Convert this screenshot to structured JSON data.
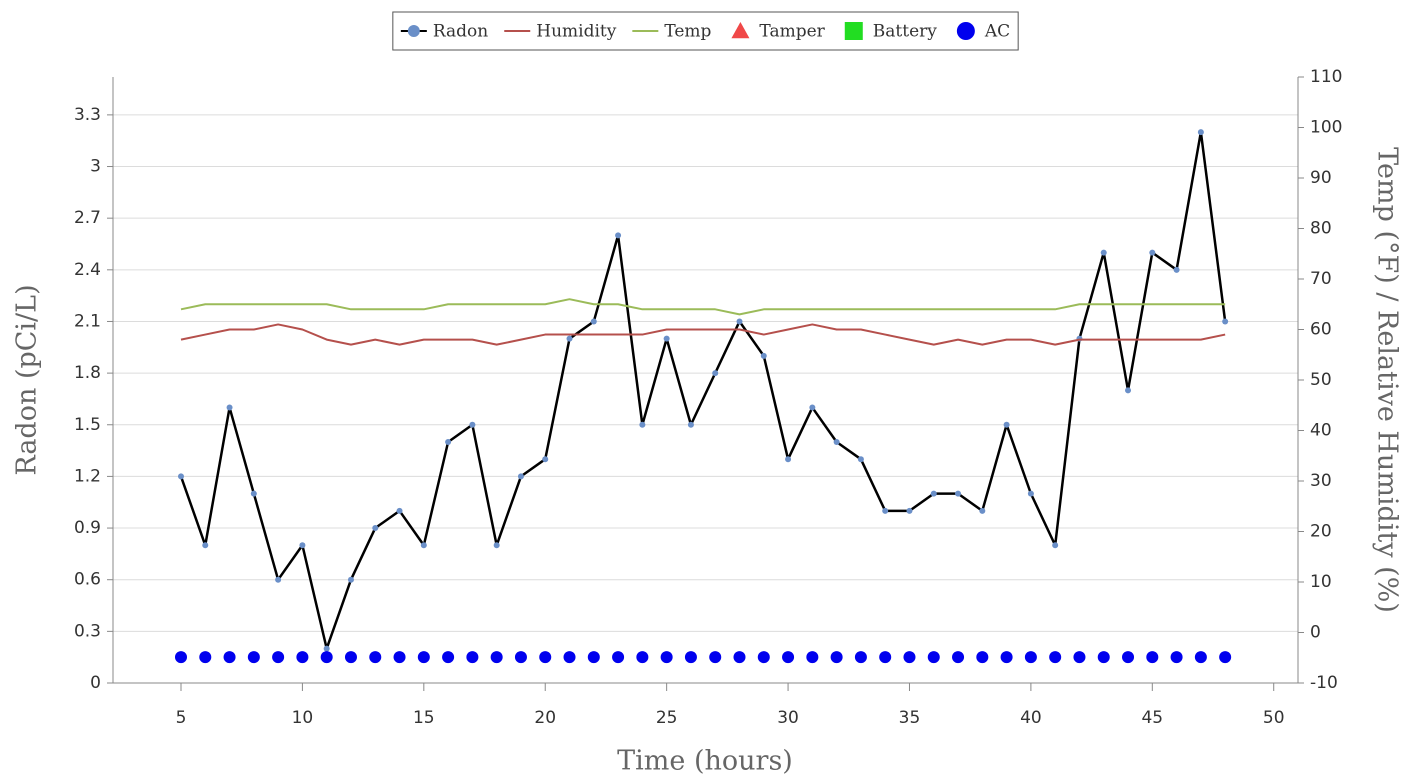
{
  "chart_data": {
    "type": "line",
    "x_label": "Time (hours)",
    "y_label": "Radon (pCi/L)",
    "y2_label": "Temp (°F) / Relative Humidity (%)",
    "x": [
      5,
      6,
      7,
      8,
      9,
      10,
      11,
      12,
      13,
      14,
      15,
      16,
      17,
      18,
      19,
      20,
      21,
      22,
      23,
      24,
      25,
      26,
      27,
      28,
      29,
      30,
      31,
      32,
      33,
      34,
      35,
      36,
      37,
      38,
      39,
      40,
      41,
      42,
      43,
      44,
      45,
      46,
      47,
      48
    ],
    "series": [
      {
        "name": "Radon",
        "color": "#000000",
        "marker_color": "#6a8fc8",
        "marker": "circle",
        "line": true,
        "axis": "y",
        "values": [
          1.2,
          0.8,
          1.6,
          1.1,
          0.6,
          0.8,
          0.2,
          0.6,
          0.9,
          1.0,
          0.8,
          1.4,
          1.5,
          0.8,
          1.2,
          1.3,
          2.0,
          2.1,
          2.6,
          1.5,
          2.0,
          1.5,
          1.8,
          2.1,
          1.9,
          1.3,
          1.6,
          1.4,
          1.3,
          1.0,
          1.0,
          1.1,
          1.1,
          1.0,
          1.5,
          1.1,
          0.8,
          2.0,
          2.5,
          1.7,
          2.5,
          2.4,
          3.2,
          2.1
        ]
      },
      {
        "name": "Humidity",
        "color": "#b5504c",
        "marker": "none",
        "line": true,
        "axis": "y2",
        "values": [
          58,
          59,
          60,
          60,
          61,
          60,
          58,
          57,
          58,
          57,
          58,
          58,
          58,
          57,
          58,
          59,
          59,
          59,
          59,
          59,
          60,
          60,
          60,
          60,
          59,
          60,
          61,
          60,
          60,
          59,
          58,
          57,
          58,
          57,
          58,
          58,
          57,
          58,
          58,
          58,
          58,
          58,
          58,
          59
        ]
      },
      {
        "name": "Temp",
        "color": "#9bbb59",
        "marker": "none",
        "line": true,
        "axis": "y2",
        "values": [
          64,
          65,
          65,
          65,
          65,
          65,
          65,
          64,
          64,
          64,
          64,
          65,
          65,
          65,
          65,
          65,
          66,
          65,
          65,
          64,
          64,
          64,
          64,
          63,
          64,
          64,
          64,
          64,
          64,
          64,
          64,
          64,
          64,
          64,
          64,
          64,
          64,
          65,
          65,
          65,
          65,
          65,
          65,
          65
        ]
      },
      {
        "name": "Tamper",
        "color": "#f04848",
        "marker": "triangle",
        "line": false,
        "axis": "y",
        "values": [
          null,
          null,
          null,
          null,
          null,
          null,
          null,
          null,
          null,
          null,
          null,
          null,
          null,
          null,
          null,
          null,
          null,
          null,
          null,
          null,
          null,
          null,
          null,
          null,
          null,
          null,
          null,
          null,
          null,
          null,
          null,
          null,
          null,
          null,
          null,
          null,
          null,
          null,
          null,
          null,
          null,
          null,
          null,
          null
        ]
      },
      {
        "name": "Battery",
        "color": "#22dd22",
        "marker": "square",
        "line": false,
        "axis": "y",
        "values": [
          null,
          null,
          null,
          null,
          null,
          null,
          null,
          null,
          null,
          null,
          null,
          null,
          null,
          null,
          null,
          null,
          null,
          null,
          null,
          null,
          null,
          null,
          null,
          null,
          null,
          null,
          null,
          null,
          null,
          null,
          null,
          null,
          null,
          null,
          null,
          null,
          null,
          null,
          null,
          null,
          null,
          null,
          null,
          null
        ]
      },
      {
        "name": "AC",
        "color": "#0000ee",
        "marker": "circle",
        "line": false,
        "axis": "y",
        "values": [
          0.15,
          0.15,
          0.15,
          0.15,
          0.15,
          0.15,
          0.15,
          0.15,
          0.15,
          0.15,
          0.15,
          0.15,
          0.15,
          0.15,
          0.15,
          0.15,
          0.15,
          0.15,
          0.15,
          0.15,
          0.15,
          0.15,
          0.15,
          0.15,
          0.15,
          0.15,
          0.15,
          0.15,
          0.15,
          0.15,
          0.15,
          0.15,
          0.15,
          0.15,
          0.15,
          0.15,
          0.15,
          0.15,
          0.15,
          0.15,
          0.15,
          0.15,
          0.15,
          0.15
        ]
      }
    ],
    "xlim": [
      2.2,
      51
    ],
    "xticks": [
      5,
      10,
      15,
      20,
      25,
      30,
      35,
      40,
      45,
      50
    ],
    "ylim": [
      0,
      3.52
    ],
    "yticks": [
      0,
      0.3,
      0.6,
      0.9,
      1.2,
      1.5,
      1.8,
      2.1,
      2.4,
      2.7,
      3,
      3.3
    ],
    "y2lim": [
      -10,
      110
    ],
    "y2ticks": [
      -10,
      0,
      10,
      20,
      30,
      40,
      50,
      60,
      70,
      80,
      90,
      100,
      110
    ],
    "grid": true,
    "legend": "top"
  }
}
